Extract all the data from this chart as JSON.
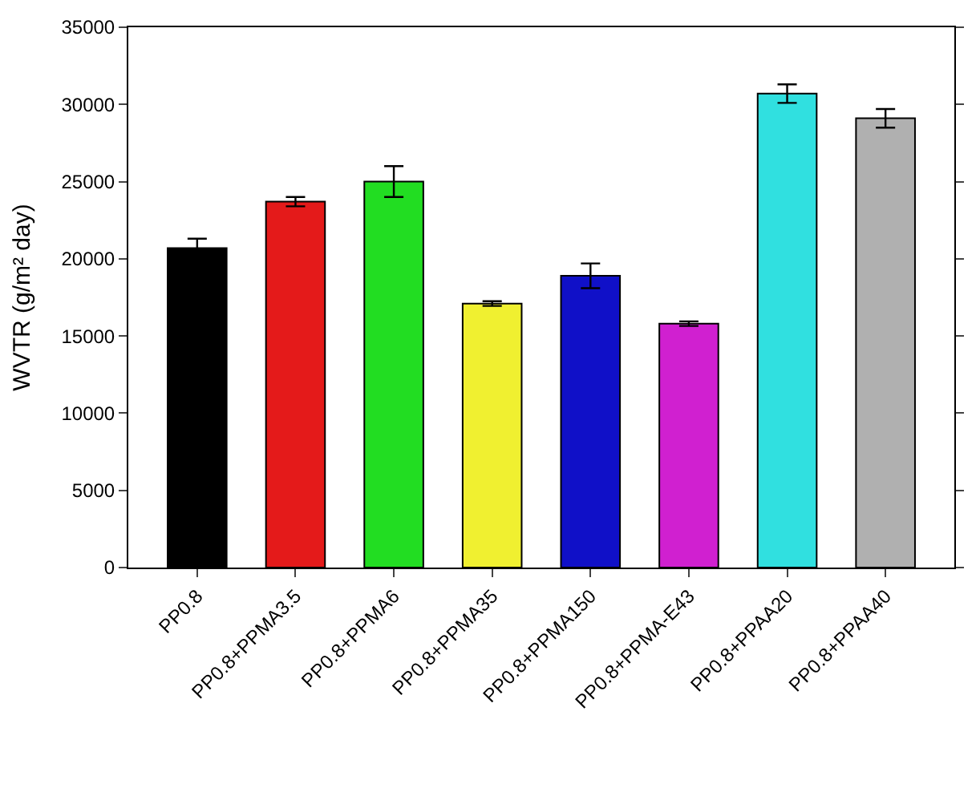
{
  "chart_data": {
    "type": "bar",
    "ylabel": "WVTR (g/m² day)",
    "categories": [
      "PP0.8",
      "PP0.8+PPMA3.5",
      "PP0.8+PPMA6",
      "PP0.8+PPMA35",
      "PP0.8+PPMA150",
      "PP0.8+PPMA-E43",
      "PP0.8+PPAA20",
      "PP0.8+PPAA40"
    ],
    "values": [
      20700,
      23700,
      25000,
      17100,
      18900,
      15800,
      30700,
      29100
    ],
    "errors": [
      600,
      300,
      1000,
      150,
      800,
      150,
      600,
      600
    ],
    "colors": [
      "#000000",
      "#e41a1a",
      "#22dd22",
      "#f0f030",
      "#1010c8",
      "#d020d0",
      "#30e0e0",
      "#b0b0b0"
    ],
    "ylim": [
      0,
      35000
    ],
    "yticks": [
      0,
      5000,
      10000,
      15000,
      20000,
      25000,
      30000,
      35000
    ]
  }
}
